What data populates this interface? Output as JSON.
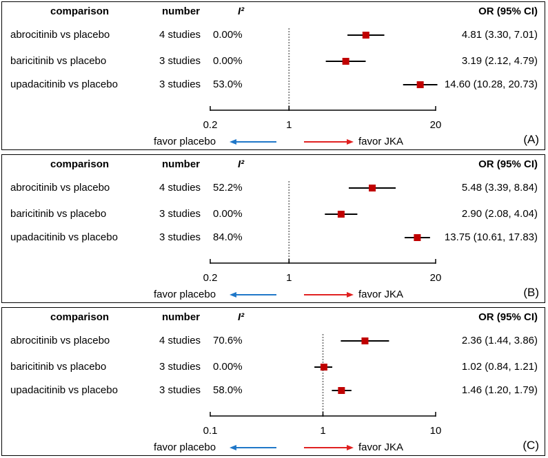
{
  "headers": {
    "comparison": "comparison",
    "number": "number",
    "i2": "I²",
    "or": "OR (95% CI)"
  },
  "favor": {
    "left": "favor placebo",
    "right": "favor JKA"
  },
  "colors": {
    "marker": "#c00000",
    "left_arrow": "#1f77c8",
    "right_arrow": "#e02020",
    "ref_line": "#888888"
  },
  "chart_data": [
    {
      "type": "forest",
      "panel_label": "(A)",
      "scale": "log",
      "xlim": [
        0.2,
        20
      ],
      "ticks": [
        0.2,
        1,
        20
      ],
      "tick_labels": [
        "0.2",
        "1",
        "20"
      ],
      "reference": 1,
      "rows": [
        {
          "comparison": "abrocitinib vs placebo",
          "number": "4 studies",
          "i2": "0.00%",
          "or": 4.81,
          "lo": 3.3,
          "hi": 7.01,
          "or_text": "4.81 (3.30, 7.01)"
        },
        {
          "comparison": "baricitinib vs placebo",
          "number": "3 studies",
          "i2": "0.00%",
          "or": 3.19,
          "lo": 2.12,
          "hi": 4.79,
          "or_text": "3.19 (2.12, 4.79)"
        },
        {
          "comparison": "upadacitinib vs placebo",
          "number": "3 studies",
          "i2": "53.0%",
          "or": 14.6,
          "lo": 10.28,
          "hi": 20.73,
          "or_text": "14.60 (10.28, 20.73)"
        }
      ]
    },
    {
      "type": "forest",
      "panel_label": "(B)",
      "scale": "log",
      "xlim": [
        0.2,
        20
      ],
      "ticks": [
        0.2,
        1,
        20
      ],
      "tick_labels": [
        "0.2",
        "1",
        "20"
      ],
      "reference": 1,
      "rows": [
        {
          "comparison": "abrocitinib vs placebo",
          "number": "4 studies",
          "i2": "52.2%",
          "or": 5.48,
          "lo": 3.39,
          "hi": 8.84,
          "or_text": "5.48 (3.39, 8.84)"
        },
        {
          "comparison": "baricitinib vs placebo",
          "number": "3 studies",
          "i2": "0.00%",
          "or": 2.9,
          "lo": 2.08,
          "hi": 4.04,
          "or_text": "2.90 (2.08, 4.04)"
        },
        {
          "comparison": "upadacitinib vs placebo",
          "number": "3 studies",
          "i2": "84.0%",
          "or": 13.75,
          "lo": 10.61,
          "hi": 17.83,
          "or_text": "13.75 (10.61, 17.83)"
        }
      ]
    },
    {
      "type": "forest",
      "panel_label": "(C)",
      "scale": "log",
      "xlim": [
        0.1,
        10
      ],
      "ticks": [
        0.1,
        1,
        10
      ],
      "tick_labels": [
        "0.1",
        "1",
        "10"
      ],
      "reference": 1,
      "rows": [
        {
          "comparison": "abrocitinib vs placebo",
          "number": "4 studies",
          "i2": "70.6%",
          "or": 2.36,
          "lo": 1.44,
          "hi": 3.86,
          "or_text": "2.36 (1.44, 3.86)"
        },
        {
          "comparison": "baricitinib vs placebo",
          "number": "3 studies",
          "i2": "0.00%",
          "or": 1.02,
          "lo": 0.84,
          "hi": 1.21,
          "or_text": "1.02 (0.84, 1.21)"
        },
        {
          "comparison": "upadacitinib vs placebo",
          "number": "3 studies",
          "i2": "58.0%",
          "or": 1.46,
          "lo": 1.2,
          "hi": 1.79,
          "or_text": "1.46 (1.20, 1.79)"
        }
      ]
    }
  ]
}
